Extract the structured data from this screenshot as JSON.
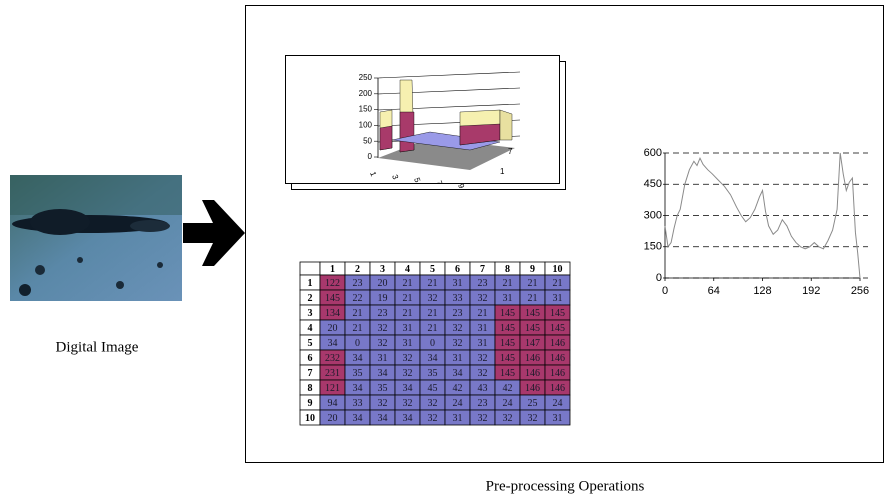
{
  "image_caption": "Digital Image",
  "panel_caption": "Pre-processing Operations",
  "surface_chart": {
    "type": "surface",
    "zticks": [
      0,
      50,
      100,
      150,
      200,
      250
    ],
    "xticks": [
      1,
      3,
      5,
      7,
      9
    ],
    "yticks": [
      1,
      7
    ]
  },
  "table": {
    "header": [
      1,
      2,
      3,
      4,
      5,
      6,
      7,
      8,
      9,
      10
    ],
    "rows": [
      [
        1,
        122,
        23,
        20,
        21,
        21,
        31,
        23,
        21,
        21,
        21
      ],
      [
        2,
        145,
        22,
        19,
        21,
        32,
        33,
        32,
        31,
        21,
        31
      ],
      [
        3,
        134,
        21,
        23,
        21,
        21,
        23,
        21,
        145,
        145,
        145
      ],
      [
        4,
        20,
        21,
        32,
        31,
        21,
        32,
        31,
        145,
        145,
        145
      ],
      [
        5,
        34,
        0,
        32,
        31,
        0,
        32,
        31,
        145,
        147,
        146
      ],
      [
        6,
        232,
        34,
        31,
        32,
        34,
        31,
        32,
        145,
        146,
        146
      ],
      [
        7,
        231,
        35,
        34,
        32,
        35,
        34,
        32,
        145,
        146,
        146
      ],
      [
        8,
        121,
        34,
        35,
        34,
        45,
        42,
        43,
        42,
        146,
        146
      ],
      [
        9,
        94,
        33,
        32,
        32,
        32,
        24,
        23,
        24,
        25,
        24
      ],
      [
        10,
        20,
        34,
        34,
        34,
        32,
        31,
        32,
        32,
        32,
        31
      ]
    ]
  },
  "line_chart": {
    "type": "line",
    "color": "#8a8a8a",
    "grid": true,
    "x": [
      0,
      4,
      8,
      12,
      16,
      20,
      26,
      32,
      38,
      42,
      46,
      50,
      56,
      62,
      70,
      78,
      86,
      94,
      100,
      106,
      112,
      118,
      124,
      128,
      132,
      136,
      142,
      148,
      154,
      160,
      166,
      172,
      178,
      184,
      190,
      196,
      202,
      208,
      214,
      220,
      226,
      230,
      234,
      238,
      242,
      246,
      250,
      253,
      256
    ],
    "values": [
      250,
      150,
      170,
      240,
      300,
      330,
      450,
      520,
      560,
      540,
      575,
      545,
      520,
      500,
      470,
      440,
      400,
      340,
      300,
      270,
      290,
      330,
      390,
      420,
      320,
      250,
      210,
      230,
      280,
      250,
      200,
      170,
      150,
      140,
      150,
      170,
      150,
      140,
      180,
      230,
      330,
      600,
      500,
      420,
      460,
      480,
      220,
      120,
      0
    ],
    "xlim": [
      0,
      256
    ],
    "ylim": [
      0,
      600
    ],
    "xticks": [
      0,
      64,
      128,
      192,
      256
    ],
    "yticks": [
      0,
      150,
      300,
      450,
      600
    ]
  }
}
